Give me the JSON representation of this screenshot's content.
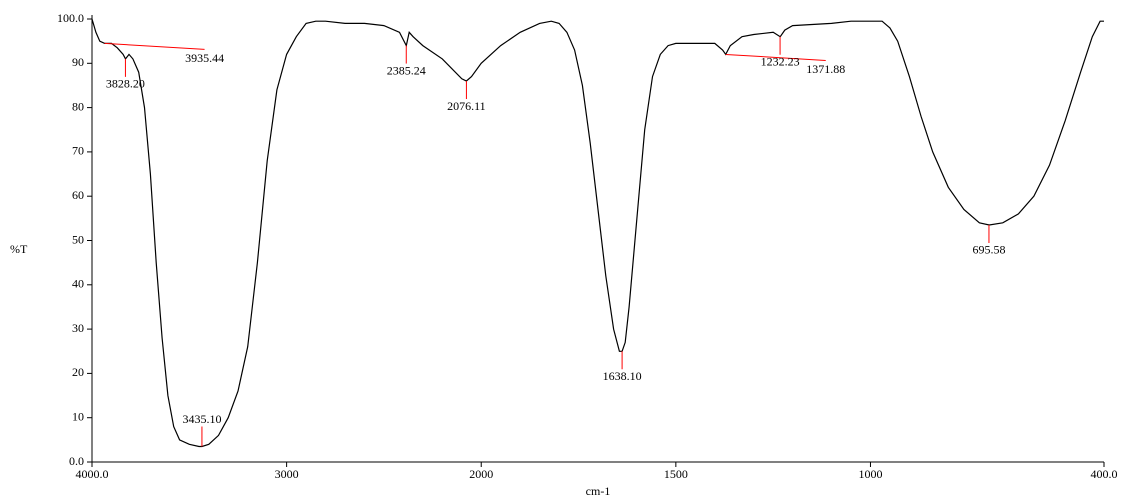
{
  "chart_data": {
    "type": "line",
    "xlabel": "cm-1",
    "ylabel": "%T",
    "x": [
      4000,
      3980,
      3960,
      3935,
      3900,
      3870,
      3840,
      3828,
      3810,
      3790,
      3760,
      3730,
      3700,
      3670,
      3640,
      3610,
      3580,
      3550,
      3500,
      3450,
      3435,
      3400,
      3350,
      3300,
      3250,
      3200,
      3150,
      3100,
      3050,
      3000,
      2950,
      2900,
      2850,
      2800,
      2700,
      2600,
      2500,
      2420,
      2385,
      2370,
      2350,
      2300,
      2200,
      2100,
      2076,
      2050,
      2000,
      1950,
      1900,
      1850,
      1820,
      1800,
      1780,
      1760,
      1740,
      1720,
      1700,
      1680,
      1660,
      1645,
      1638,
      1630,
      1620,
      1600,
      1580,
      1560,
      1540,
      1520,
      1500,
      1450,
      1400,
      1380,
      1372,
      1360,
      1330,
      1300,
      1250,
      1232,
      1220,
      1200,
      1100,
      1050,
      1000,
      970,
      950,
      930,
      900,
      870,
      840,
      800,
      760,
      720,
      695,
      660,
      620,
      580,
      540,
      500,
      460,
      430,
      410,
      400
    ],
    "values": [
      100,
      97,
      95,
      94.5,
      94.5,
      93.5,
      92,
      91,
      92,
      91,
      88,
      80,
      65,
      45,
      28,
      15,
      8,
      5,
      4,
      3.5,
      3.5,
      4,
      6,
      10,
      16,
      26,
      45,
      68,
      84,
      92,
      96,
      99,
      99.5,
      99.5,
      99,
      99,
      98.5,
      97,
      94,
      97,
      96,
      94,
      91,
      86.5,
      86,
      87,
      90,
      94,
      97,
      99,
      99.5,
      99,
      97,
      93,
      85,
      72,
      57,
      42,
      30,
      25,
      25,
      27,
      35,
      55,
      75,
      87,
      92,
      94,
      94.5,
      94.5,
      94.5,
      93,
      92,
      94,
      96,
      96.5,
      97,
      96,
      97.5,
      98.5,
      99,
      99.5,
      99.5,
      99.5,
      98,
      95,
      87,
      78,
      70,
      62,
      57,
      54,
      53.5,
      54,
      56,
      60,
      67,
      77,
      88,
      96,
      99.5,
      99.5
    ],
    "color": "#000000",
    "peaks": [
      {
        "x": 3935.44,
        "y": 94.5,
        "label": "3935.44"
      },
      {
        "x": 3828.2,
        "y": 91,
        "label": "3828.20"
      },
      {
        "x": 3435.1,
        "y": 3.5,
        "label": "3435.10"
      },
      {
        "x": 2385.24,
        "y": 94,
        "label": "2385.24"
      },
      {
        "x": 2076.11,
        "y": 86,
        "label": "2076.11"
      },
      {
        "x": 1638.1,
        "y": 25,
        "label": "1638.10"
      },
      {
        "x": 1371.88,
        "y": 92,
        "label": "1371.88"
      },
      {
        "x": 1232.23,
        "y": 96,
        "label": "1232.23"
      },
      {
        "x": 695.58,
        "y": 53.5,
        "label": "695.58"
      }
    ],
    "peak_color": "#ff0000",
    "xlim": [
      4000,
      400
    ],
    "x_expand": {
      "below": 2000,
      "factor": 2
    },
    "xticks": [
      {
        "value": 4000,
        "label": "4000.0"
      },
      3000,
      2000,
      1500,
      1000,
      {
        "value": 400,
        "label": "400.0"
      }
    ],
    "ylim": [
      0,
      100
    ],
    "yticks": [
      {
        "value": 0,
        "label": "0.0"
      },
      10,
      20,
      30,
      40,
      50,
      60,
      70,
      80,
      90,
      {
        "value": 100,
        "label": "100.0"
      }
    ]
  }
}
